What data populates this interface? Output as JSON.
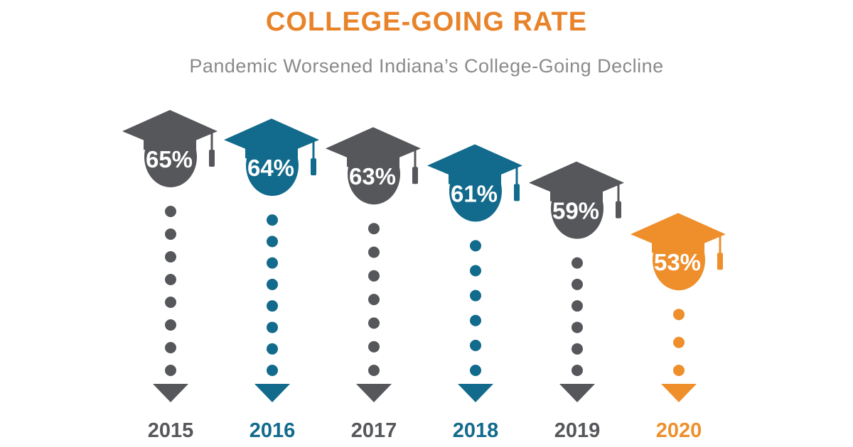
{
  "chart_data": {
    "type": "bar",
    "title": "COLLEGE-GOING RATE",
    "subtitle": "Pandemic Worsened Indiana’s College-Going Decline",
    "categories": [
      "2015",
      "2016",
      "2017",
      "2018",
      "2019",
      "2020"
    ],
    "values": [
      65,
      64,
      63,
      61,
      59,
      53
    ],
    "value_suffix": "%",
    "category_colors": [
      "#56575b",
      "#126b8c",
      "#56575b",
      "#126b8c",
      "#56575b",
      "#ee8f2c"
    ],
    "ylim": [
      50,
      66
    ],
    "grid": false,
    "legend": "none"
  }
}
